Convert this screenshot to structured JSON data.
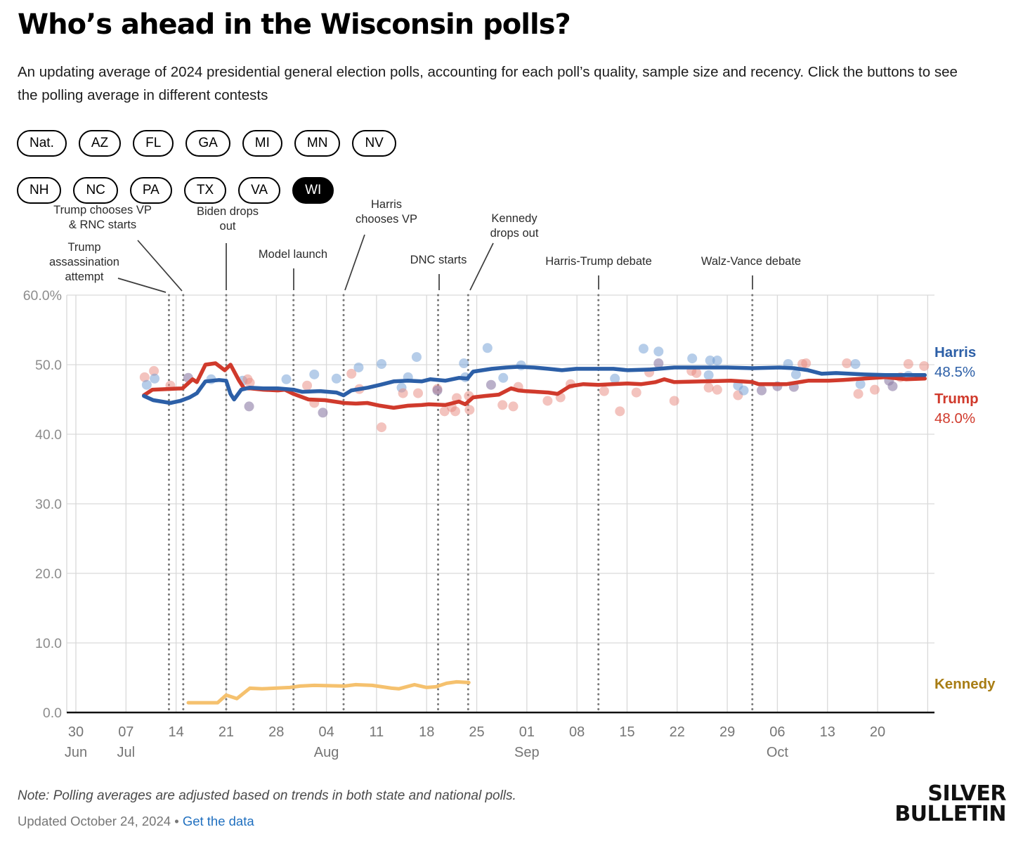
{
  "header": {
    "title": "Who’s ahead in the Wisconsin polls?",
    "subtitle": "An updating average of 2024 presidential general election polls, accounting for each poll’s quality, sample size and recency. Click the buttons to see the polling average in different contests"
  },
  "contest_buttons": {
    "row1": [
      {
        "label": "Nat.",
        "active": false
      },
      {
        "label": "AZ",
        "active": false
      },
      {
        "label": "FL",
        "active": false
      },
      {
        "label": "GA",
        "active": false
      },
      {
        "label": "MI",
        "active": false
      },
      {
        "label": "MN",
        "active": false
      },
      {
        "label": "NV",
        "active": false
      }
    ],
    "row2": [
      {
        "label": "NH",
        "active": false
      },
      {
        "label": "NC",
        "active": false
      },
      {
        "label": "PA",
        "active": false
      },
      {
        "label": "TX",
        "active": false
      },
      {
        "label": "VA",
        "active": false
      },
      {
        "label": "WI",
        "active": true
      }
    ]
  },
  "side_labels": {
    "harris_name": "Harris",
    "harris_value": "48.5%",
    "trump_name": "Trump",
    "trump_value": "48.0%",
    "kennedy_name": "Kennedy"
  },
  "footer": {
    "note": "Note: Polling averages are adjusted based on trends in both state and national polls.",
    "updated": "Updated October 24, 2024",
    "separator": "•",
    "link": "Get the data",
    "logo_line1": "SILVER",
    "logo_line2": "BULLETIN"
  },
  "colors": {
    "harris": "#2c5fa7",
    "trump": "#d03a2c",
    "kennedy_line": "#f5c16e",
    "kennedy_label": "#a87d14",
    "scatter_harris": "#6e9bd4",
    "scatter_trump": "#e8887d",
    "scatter_mix": "#8f7fa8",
    "gridline": "#d9d9d9",
    "event_line": "#767676",
    "axis_text": "#8c8c8c",
    "axis_line": "#111111"
  },
  "chart_data": {
    "type": "line",
    "title": "Who’s ahead in the Wisconsin polls?",
    "x_unit": "days since Jun 30, 2024",
    "ylim": [
      0,
      60
    ],
    "grid": true,
    "y_ticks": [
      {
        "label": "60.0%",
        "value": 60
      },
      {
        "label": "50.0",
        "value": 50
      },
      {
        "label": "40.0",
        "value": 40
      },
      {
        "label": "30.0",
        "value": 30
      },
      {
        "label": "20.0",
        "value": 20
      },
      {
        "label": "10.0",
        "value": 10
      },
      {
        "label": "0.0",
        "value": 0
      }
    ],
    "x_ticks": [
      {
        "label": "30",
        "month": "Jun",
        "day": 0
      },
      {
        "label": "07",
        "month": "Jul",
        "day": 7
      },
      {
        "label": "14",
        "day": 14
      },
      {
        "label": "21",
        "day": 21
      },
      {
        "label": "28",
        "day": 28
      },
      {
        "label": "04",
        "month": "Aug",
        "day": 35
      },
      {
        "label": "11",
        "day": 42
      },
      {
        "label": "18",
        "day": 49
      },
      {
        "label": "25",
        "day": 56
      },
      {
        "label": "01",
        "month": "Sep",
        "day": 63
      },
      {
        "label": "08",
        "day": 70
      },
      {
        "label": "15",
        "day": 77
      },
      {
        "label": "22",
        "day": 84
      },
      {
        "label": "29",
        "day": 91
      },
      {
        "label": "06",
        "month": "Oct",
        "day": 98
      },
      {
        "label": "13",
        "day": 105
      },
      {
        "label": "20",
        "day": 112
      }
    ],
    "events": [
      {
        "label": "Trump\nassassination\nattempt",
        "day": 13
      },
      {
        "label": "Trump chooses VP\n& RNC starts",
        "day": 15
      },
      {
        "label": "Biden drops\nout",
        "day": 21
      },
      {
        "label": "Model launch",
        "day": 30.4
      },
      {
        "label": "Harris\nchooses VP",
        "day": 37.4
      },
      {
        "label": "DNC starts",
        "day": 50.6
      },
      {
        "label": "Kennedy\ndrops out",
        "day": 54.8
      },
      {
        "label": "Harris-Trump debate",
        "day": 73.0
      },
      {
        "label": "Walz-Vance debate",
        "day": 94.5
      }
    ],
    "series": [
      {
        "name": "Harris",
        "end_value": 48.5,
        "points": [
          [
            9.5,
            45.5
          ],
          [
            10.8,
            44.9
          ],
          [
            13.2,
            44.5
          ],
          [
            14.6,
            44.8
          ],
          [
            15.9,
            45.3
          ],
          [
            16.9,
            45.9
          ],
          [
            18.1,
            47.6
          ],
          [
            20.0,
            47.8
          ],
          [
            21.0,
            47.7
          ],
          [
            21.6,
            45.8
          ],
          [
            22.1,
            45.0
          ],
          [
            23.1,
            46.4
          ],
          [
            24.3,
            46.7
          ],
          [
            26.2,
            46.6
          ],
          [
            28.2,
            46.6
          ],
          [
            30.4,
            46.4
          ],
          [
            31.6,
            46.1
          ],
          [
            34.1,
            46.2
          ],
          [
            36.4,
            46.0
          ],
          [
            37.4,
            45.6
          ],
          [
            38.5,
            46.3
          ],
          [
            40.8,
            46.7
          ],
          [
            42.5,
            47.1
          ],
          [
            44.4,
            47.6
          ],
          [
            46.4,
            47.7
          ],
          [
            48.3,
            47.6
          ],
          [
            49.5,
            47.9
          ],
          [
            51.6,
            47.7
          ],
          [
            53.5,
            48.1
          ],
          [
            54.7,
            48.0
          ],
          [
            55.5,
            49.0
          ],
          [
            58.1,
            49.4
          ],
          [
            60.1,
            49.6
          ],
          [
            61.8,
            49.7
          ],
          [
            64.0,
            49.6
          ],
          [
            66.0,
            49.4
          ],
          [
            67.9,
            49.2
          ],
          [
            69.9,
            49.4
          ],
          [
            73.0,
            49.4
          ],
          [
            75.1,
            49.4
          ],
          [
            77.1,
            49.2
          ],
          [
            80.2,
            49.3
          ],
          [
            83.6,
            49.6
          ],
          [
            87.5,
            49.6
          ],
          [
            91.0,
            49.6
          ],
          [
            94.5,
            49.5
          ],
          [
            98.3,
            49.6
          ],
          [
            100.3,
            49.5
          ],
          [
            102.3,
            49.2
          ],
          [
            104.2,
            48.7
          ],
          [
            106.2,
            48.8
          ],
          [
            110.1,
            48.6
          ],
          [
            113.1,
            48.5
          ],
          [
            118.6,
            48.5
          ]
        ]
      },
      {
        "name": "Trump",
        "end_value": 48.0,
        "points": [
          [
            9.5,
            45.6
          ],
          [
            10.7,
            46.4
          ],
          [
            12.9,
            46.5
          ],
          [
            14.9,
            46.6
          ],
          [
            16.3,
            47.9
          ],
          [
            16.9,
            47.5
          ],
          [
            18.1,
            50.0
          ],
          [
            19.5,
            50.2
          ],
          [
            20.8,
            49.2
          ],
          [
            21.6,
            50.0
          ],
          [
            22.8,
            47.7
          ],
          [
            23.5,
            46.6
          ],
          [
            24.3,
            46.6
          ],
          [
            26.2,
            46.4
          ],
          [
            28.2,
            46.3
          ],
          [
            29.2,
            46.4
          ],
          [
            30.4,
            45.8
          ],
          [
            32.5,
            45.0
          ],
          [
            34.8,
            44.9
          ],
          [
            36.8,
            44.6
          ],
          [
            37.4,
            44.5
          ],
          [
            39.1,
            44.4
          ],
          [
            40.7,
            44.5
          ],
          [
            42.5,
            44.1
          ],
          [
            44.4,
            43.8
          ],
          [
            46.4,
            44.1
          ],
          [
            48.3,
            44.2
          ],
          [
            49.3,
            44.3
          ],
          [
            51.6,
            44.2
          ],
          [
            53.5,
            44.7
          ],
          [
            54.4,
            44.3
          ],
          [
            55.5,
            45.3
          ],
          [
            57.2,
            45.5
          ],
          [
            59.1,
            45.7
          ],
          [
            60.8,
            46.6
          ],
          [
            61.8,
            46.3
          ],
          [
            62.8,
            46.2
          ],
          [
            66.0,
            46.0
          ],
          [
            67.3,
            45.8
          ],
          [
            69.0,
            46.9
          ],
          [
            70.9,
            47.2
          ],
          [
            73.0,
            47.1
          ],
          [
            74.9,
            47.2
          ],
          [
            77.1,
            47.3
          ],
          [
            79.0,
            47.2
          ],
          [
            81.0,
            47.5
          ],
          [
            82.2,
            47.9
          ],
          [
            83.6,
            47.5
          ],
          [
            87.5,
            47.6
          ],
          [
            91.5,
            47.7
          ],
          [
            94.5,
            47.5
          ],
          [
            95.4,
            47.2
          ],
          [
            99.3,
            47.2
          ],
          [
            102.3,
            47.7
          ],
          [
            105.2,
            47.7
          ],
          [
            107.2,
            47.8
          ],
          [
            110.1,
            48.0
          ],
          [
            113.1,
            48.2
          ],
          [
            116.0,
            47.9
          ],
          [
            118.6,
            48.0
          ]
        ]
      },
      {
        "name": "Kennedy",
        "end_value": 4.3,
        "points": [
          [
            15.7,
            1.4
          ],
          [
            19.8,
            1.4
          ],
          [
            21.0,
            2.5
          ],
          [
            22.5,
            2.0
          ],
          [
            24.3,
            3.5
          ],
          [
            26.0,
            3.4
          ],
          [
            29.9,
            3.6
          ],
          [
            31.3,
            3.8
          ],
          [
            33.3,
            3.9
          ],
          [
            37.5,
            3.8
          ],
          [
            39.1,
            4.0
          ],
          [
            41.4,
            3.9
          ],
          [
            44.1,
            3.5
          ],
          [
            45.1,
            3.4
          ],
          [
            47.3,
            4.0
          ],
          [
            49.0,
            3.6
          ],
          [
            50.3,
            3.7
          ],
          [
            51.8,
            4.2
          ],
          [
            53.2,
            4.4
          ],
          [
            54.9,
            4.3
          ]
        ]
      }
    ],
    "scatter": [
      [
        9.6,
        48.2,
        "r"
      ],
      [
        10.9,
        49.1,
        "r"
      ],
      [
        9.9,
        47.1,
        "b"
      ],
      [
        11.0,
        48.0,
        "b"
      ],
      [
        13.2,
        47.0,
        "r"
      ],
      [
        15.7,
        48.1,
        "m"
      ],
      [
        18.9,
        47.9,
        "b"
      ],
      [
        23.3,
        47.7,
        "b"
      ],
      [
        24.0,
        47.9,
        "r"
      ],
      [
        24.3,
        47.4,
        "r"
      ],
      [
        24.2,
        44.0,
        "m"
      ],
      [
        29.4,
        47.9,
        "b"
      ],
      [
        32.3,
        47.0,
        "r"
      ],
      [
        33.3,
        48.6,
        "b"
      ],
      [
        33.3,
        44.5,
        "r"
      ],
      [
        34.5,
        43.1,
        "m"
      ],
      [
        36.4,
        48.0,
        "b"
      ],
      [
        38.5,
        48.7,
        "r"
      ],
      [
        39.5,
        49.6,
        "b"
      ],
      [
        39.6,
        46.5,
        "r"
      ],
      [
        42.7,
        50.1,
        "b"
      ],
      [
        42.7,
        41.0,
        "r"
      ],
      [
        45.5,
        46.7,
        "b"
      ],
      [
        45.7,
        45.9,
        "r"
      ],
      [
        46.4,
        48.2,
        "b"
      ],
      [
        47.6,
        51.1,
        "b"
      ],
      [
        47.8,
        45.9,
        "r"
      ],
      [
        50.5,
        46.5,
        "r"
      ],
      [
        50.5,
        46.3,
        "m"
      ],
      [
        51.5,
        43.3,
        "r"
      ],
      [
        52.5,
        43.9,
        "r"
      ],
      [
        53.0,
        43.3,
        "r"
      ],
      [
        53.2,
        45.2,
        "r"
      ],
      [
        54.2,
        50.2,
        "b"
      ],
      [
        54.4,
        48.2,
        "b"
      ],
      [
        54.9,
        45.5,
        "r"
      ],
      [
        55.0,
        43.5,
        "r"
      ],
      [
        57.5,
        52.4,
        "b"
      ],
      [
        58.0,
        47.1,
        "m"
      ],
      [
        59.7,
        48.1,
        "b"
      ],
      [
        59.6,
        44.2,
        "r"
      ],
      [
        61.1,
        44.0,
        "r"
      ],
      [
        62.2,
        49.9,
        "b"
      ],
      [
        61.8,
        46.8,
        "r"
      ],
      [
        65.9,
        44.8,
        "r"
      ],
      [
        67.7,
        45.3,
        "r"
      ],
      [
        69.1,
        47.2,
        "r"
      ],
      [
        73.8,
        46.2,
        "r"
      ],
      [
        75.3,
        48.0,
        "b"
      ],
      [
        76.0,
        43.3,
        "r"
      ],
      [
        78.3,
        46.0,
        "r"
      ],
      [
        79.3,
        52.3,
        "b"
      ],
      [
        80.1,
        48.9,
        "r"
      ],
      [
        81.4,
        51.9,
        "b"
      ],
      [
        81.4,
        50.2,
        "m"
      ],
      [
        83.6,
        44.8,
        "r"
      ],
      [
        86.1,
        50.9,
        "b"
      ],
      [
        86.0,
        49.1,
        "r"
      ],
      [
        86.7,
        48.8,
        "r"
      ],
      [
        88.4,
        48.5,
        "b"
      ],
      [
        88.6,
        50.6,
        "b"
      ],
      [
        89.6,
        50.6,
        "b"
      ],
      [
        88.4,
        46.7,
        "r"
      ],
      [
        89.6,
        46.4,
        "r"
      ],
      [
        92.5,
        47.0,
        "b"
      ],
      [
        92.5,
        45.6,
        "r"
      ],
      [
        93.3,
        46.3,
        "b"
      ],
      [
        95.8,
        46.3,
        "m"
      ],
      [
        98.0,
        46.9,
        "m"
      ],
      [
        99.5,
        50.1,
        "b"
      ],
      [
        100.3,
        46.8,
        "m"
      ],
      [
        100.6,
        48.6,
        "b"
      ],
      [
        101.5,
        50.1,
        "r"
      ],
      [
        102.0,
        50.2,
        "r"
      ],
      [
        107.7,
        50.2,
        "r"
      ],
      [
        108.9,
        50.1,
        "b"
      ],
      [
        109.6,
        47.2,
        "b"
      ],
      [
        109.3,
        45.8,
        "r"
      ],
      [
        111.6,
        46.4,
        "r"
      ],
      [
        113.6,
        47.7,
        "m"
      ],
      [
        114.1,
        46.9,
        "m"
      ],
      [
        115.2,
        48.2,
        "r"
      ],
      [
        116.3,
        50.1,
        "r"
      ],
      [
        116.3,
        48.4,
        "b"
      ],
      [
        118.5,
        49.8,
        "r"
      ]
    ]
  }
}
